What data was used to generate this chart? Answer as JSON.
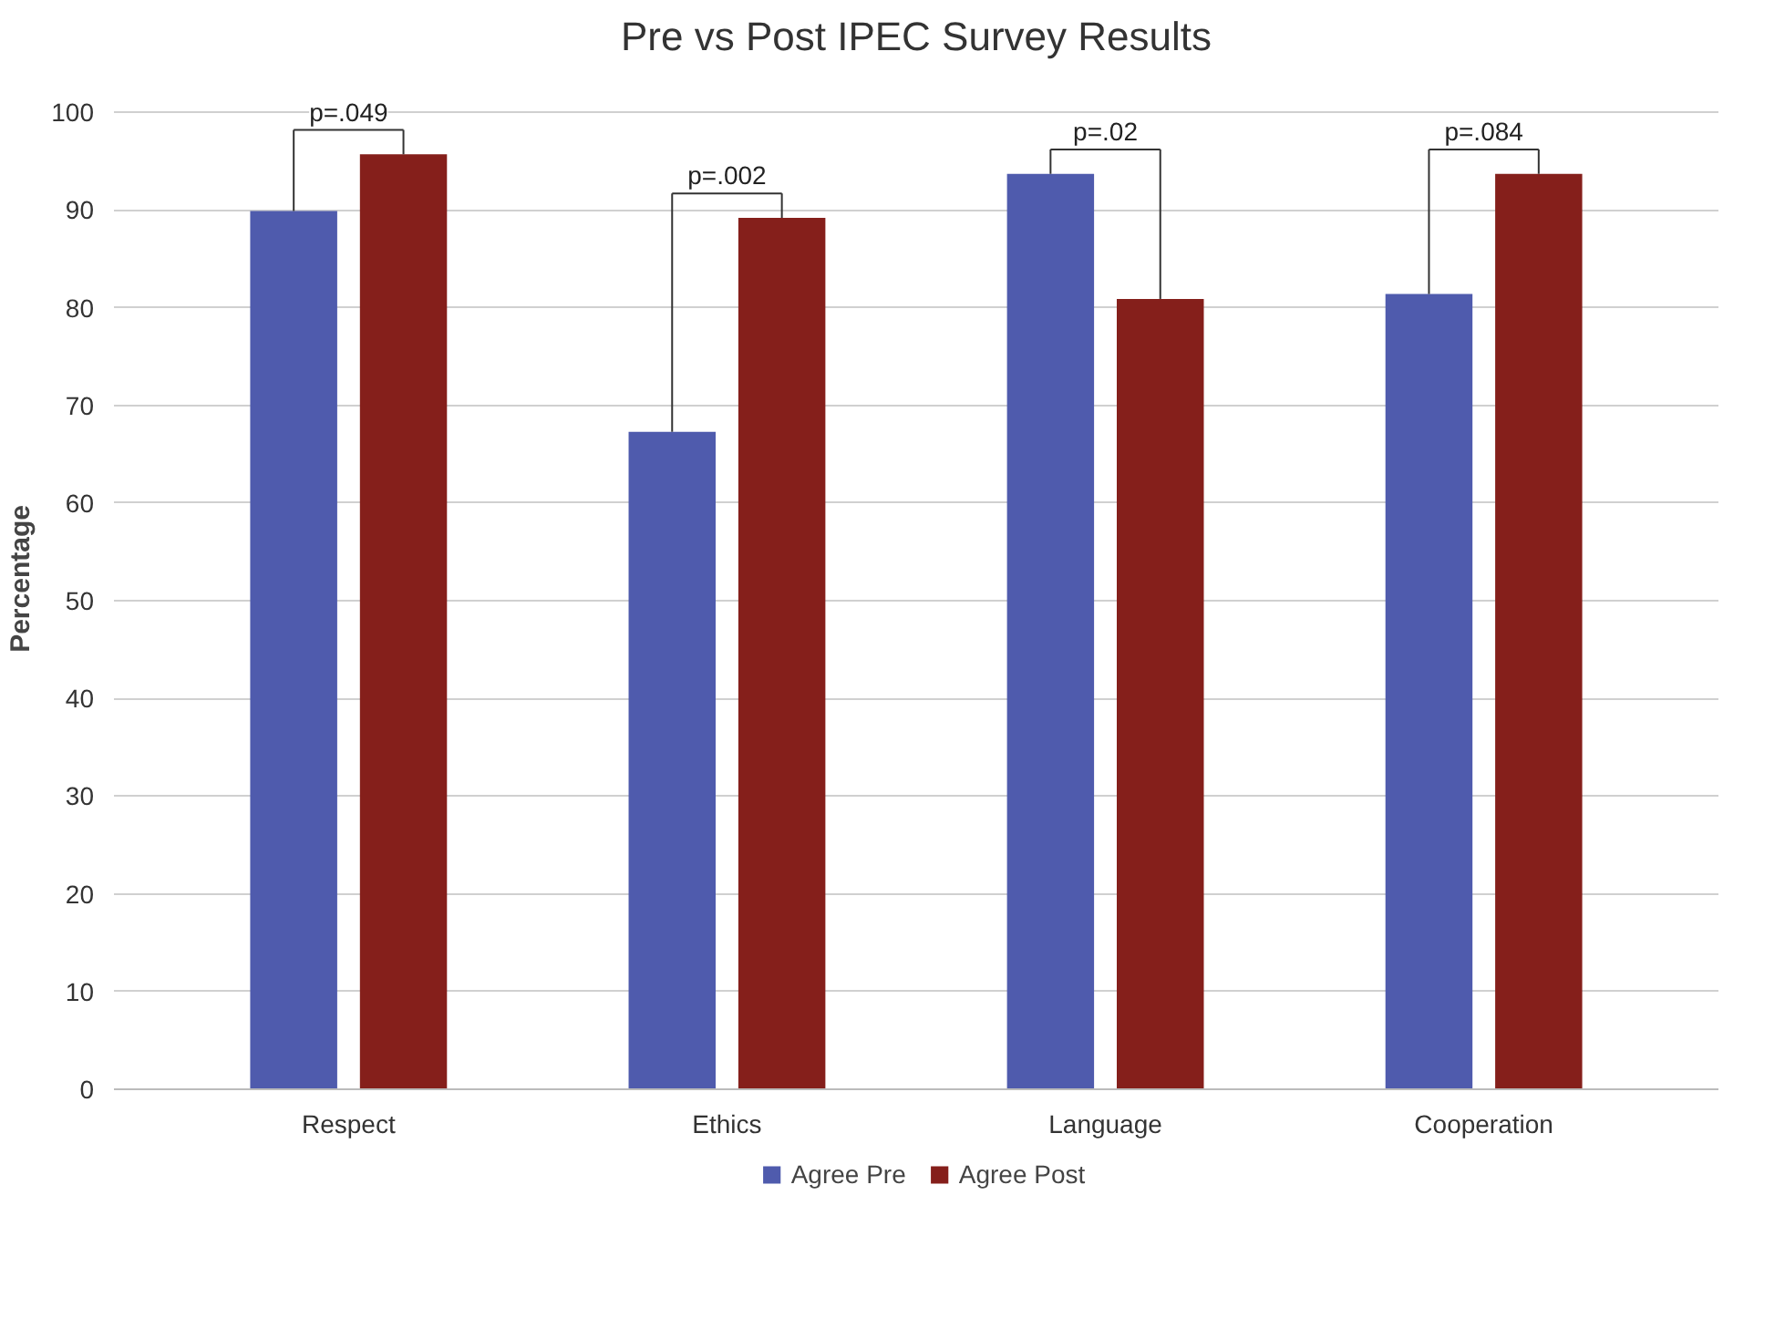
{
  "chart_data": {
    "type": "bar",
    "title": "Pre vs Post IPEC Survey Results",
    "ylabel": "Percentage",
    "categories": [
      "Respect",
      "Ethics",
      "Language",
      "Cooperation"
    ],
    "series": [
      {
        "name": "Agree Pre",
        "color": "#4f5bad",
        "values": [
          89.9,
          67.3,
          93.7,
          81.4
        ]
      },
      {
        "name": "Agree Post",
        "color": "#851f1b",
        "values": [
          95.7,
          89.2,
          80.9,
          93.7
        ]
      }
    ],
    "ylim": [
      0,
      100
    ],
    "yticks": [
      0,
      10,
      20,
      30,
      40,
      50,
      60,
      70,
      80,
      90,
      100
    ],
    "grid": "y",
    "legend": "bottom",
    "annotations": [
      {
        "text": "p=.049",
        "x": "Respect"
      },
      {
        "text": "p=.002",
        "x": "Ethics"
      },
      {
        "text": "p=.02",
        "x": "Language"
      },
      {
        "text": "p=.084",
        "x": "Cooperation"
      }
    ]
  }
}
